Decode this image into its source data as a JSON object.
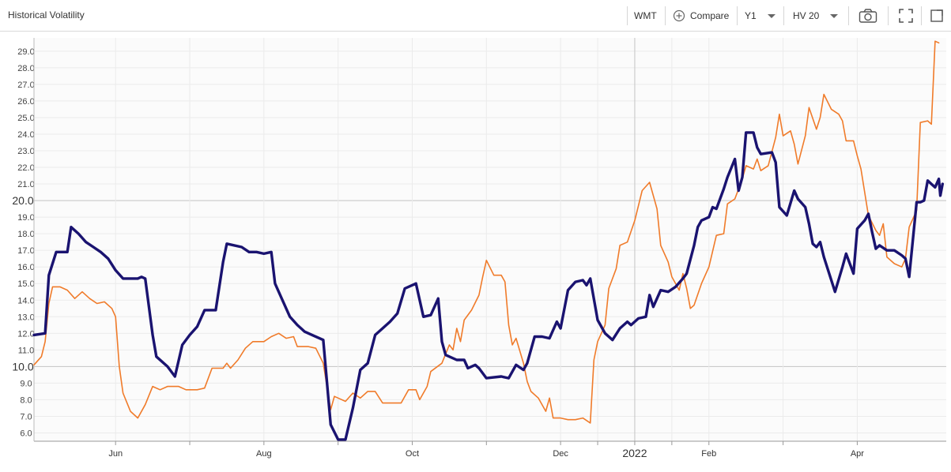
{
  "toolbar": {
    "title": "Historical Volatility",
    "ticker": "WMT",
    "compare_label": "Compare",
    "period": "Y1",
    "indicator": "HV 20",
    "icons": [
      "plus-circle-icon",
      "camera-icon",
      "fullscreen-icon",
      "popout-icon"
    ]
  },
  "chart_data": {
    "type": "line",
    "grid": true,
    "y_axis_position": "left",
    "ylim": [
      5.5,
      29.8
    ],
    "y_ticks": [
      "6.0",
      "7.0",
      "8.0",
      "9.0",
      "10.0",
      "11.0",
      "12.0",
      "13.0",
      "14.0",
      "15.0",
      "16.0",
      "17.0",
      "18.0",
      "19.0",
      "20.0",
      "21.0",
      "22.0",
      "23.0",
      "24.0",
      "25.0",
      "26.0",
      "27.0",
      "28.0",
      "29.0"
    ],
    "highlighted_y_ticks": [
      "10.0",
      "20.0"
    ],
    "x_labels": [
      "Jun",
      "Aug",
      "Oct",
      "Dec",
      "2022",
      "Feb",
      "Apr"
    ],
    "x_label_positions": [
      1.1,
      3.1,
      5.1,
      7.1,
      8.1,
      9.1,
      11.1
    ],
    "xlim": [
      0,
      12.3
    ],
    "colors": {
      "series_1": "#1a1370",
      "series_2": "#f07b2a",
      "grid": "#ebebeb"
    },
    "series": [
      {
        "points": [
          [
            0.0,
            11.9
          ],
          [
            0.15,
            12.0
          ],
          [
            0.2,
            15.5
          ],
          [
            0.3,
            16.9
          ],
          [
            0.45,
            16.9
          ],
          [
            0.5,
            18.4
          ],
          [
            0.6,
            18.0
          ],
          [
            0.7,
            17.5
          ],
          [
            0.8,
            17.2
          ],
          [
            0.9,
            16.9
          ],
          [
            1.0,
            16.5
          ],
          [
            1.1,
            15.8
          ],
          [
            1.2,
            15.3
          ],
          [
            1.4,
            15.3
          ],
          [
            1.45,
            15.4
          ],
          [
            1.5,
            15.3
          ],
          [
            1.6,
            11.9
          ],
          [
            1.65,
            10.6
          ],
          [
            1.8,
            10.0
          ],
          [
            1.9,
            9.4
          ],
          [
            2.0,
            11.3
          ],
          [
            2.1,
            11.9
          ],
          [
            2.2,
            12.4
          ],
          [
            2.3,
            13.4
          ],
          [
            2.45,
            13.4
          ],
          [
            2.55,
            16.3
          ],
          [
            2.6,
            17.4
          ],
          [
            2.8,
            17.2
          ],
          [
            2.9,
            16.9
          ],
          [
            3.0,
            16.9
          ],
          [
            3.1,
            16.8
          ],
          [
            3.2,
            16.9
          ],
          [
            3.25,
            15.0
          ],
          [
            3.35,
            14.0
          ],
          [
            3.45,
            13.0
          ],
          [
            3.55,
            12.5
          ],
          [
            3.65,
            12.1
          ],
          [
            3.75,
            11.9
          ],
          [
            3.9,
            11.6
          ],
          [
            4.0,
            6.5
          ],
          [
            4.1,
            5.6
          ],
          [
            4.2,
            5.6
          ],
          [
            4.3,
            7.5
          ],
          [
            4.4,
            9.8
          ],
          [
            4.5,
            10.2
          ],
          [
            4.6,
            11.9
          ],
          [
            4.7,
            12.3
          ],
          [
            4.8,
            12.7
          ],
          [
            4.9,
            13.2
          ],
          [
            5.0,
            14.7
          ],
          [
            5.1,
            14.9
          ],
          [
            5.15,
            15.0
          ],
          [
            5.25,
            13.0
          ],
          [
            5.35,
            13.1
          ],
          [
            5.45,
            14.1
          ],
          [
            5.5,
            11.5
          ],
          [
            5.55,
            10.7
          ],
          [
            5.7,
            10.4
          ],
          [
            5.8,
            10.4
          ],
          [
            5.85,
            9.9
          ],
          [
            5.95,
            10.1
          ],
          [
            6.0,
            9.9
          ],
          [
            6.1,
            9.3
          ],
          [
            6.3,
            9.4
          ],
          [
            6.4,
            9.3
          ],
          [
            6.5,
            10.1
          ],
          [
            6.6,
            9.8
          ],
          [
            6.65,
            10.2
          ],
          [
            6.75,
            11.8
          ],
          [
            6.85,
            11.8
          ],
          [
            6.95,
            11.7
          ],
          [
            7.05,
            12.7
          ],
          [
            7.1,
            12.3
          ],
          [
            7.2,
            14.6
          ],
          [
            7.3,
            15.1
          ],
          [
            7.4,
            15.2
          ],
          [
            7.45,
            14.9
          ],
          [
            7.5,
            15.3
          ],
          [
            7.6,
            12.8
          ],
          [
            7.7,
            12.0
          ],
          [
            7.8,
            11.6
          ],
          [
            7.9,
            12.3
          ],
          [
            8.0,
            12.7
          ],
          [
            8.05,
            12.5
          ],
          [
            8.15,
            12.9
          ],
          [
            8.25,
            13.0
          ],
          [
            8.3,
            14.3
          ],
          [
            8.35,
            13.6
          ],
          [
            8.45,
            14.6
          ],
          [
            8.55,
            14.5
          ],
          [
            8.65,
            14.8
          ],
          [
            8.75,
            15.3
          ],
          [
            8.8,
            15.6
          ],
          [
            8.9,
            17.3
          ],
          [
            8.95,
            18.4
          ],
          [
            9.0,
            18.8
          ],
          [
            9.1,
            19.0
          ],
          [
            9.15,
            19.6
          ],
          [
            9.2,
            19.5
          ],
          [
            9.3,
            20.7
          ],
          [
            9.35,
            21.4
          ],
          [
            9.45,
            22.5
          ],
          [
            9.5,
            20.6
          ],
          [
            9.55,
            21.4
          ],
          [
            9.6,
            24.1
          ],
          [
            9.7,
            24.1
          ],
          [
            9.75,
            23.2
          ],
          [
            9.8,
            22.8
          ],
          [
            9.95,
            22.9
          ],
          [
            10.0,
            22.3
          ],
          [
            10.05,
            19.6
          ],
          [
            10.15,
            19.1
          ],
          [
            10.25,
            20.6
          ],
          [
            10.3,
            20.1
          ],
          [
            10.4,
            19.6
          ],
          [
            10.45,
            18.6
          ],
          [
            10.5,
            17.4
          ],
          [
            10.55,
            17.2
          ],
          [
            10.6,
            17.5
          ],
          [
            10.65,
            16.6
          ],
          [
            10.75,
            15.2
          ],
          [
            10.8,
            14.5
          ],
          [
            10.9,
            16.0
          ],
          [
            10.95,
            16.8
          ],
          [
            11.05,
            15.6
          ],
          [
            11.1,
            18.3
          ],
          [
            11.2,
            18.8
          ],
          [
            11.25,
            19.2
          ],
          [
            11.3,
            18.1
          ],
          [
            11.35,
            17.1
          ],
          [
            11.4,
            17.3
          ],
          [
            11.5,
            17.0
          ],
          [
            11.6,
            17.0
          ],
          [
            11.7,
            16.7
          ],
          [
            11.75,
            16.5
          ],
          [
            11.8,
            15.4
          ]
        ]
      },
      {
        "points": []
      }
    ]
  }
}
